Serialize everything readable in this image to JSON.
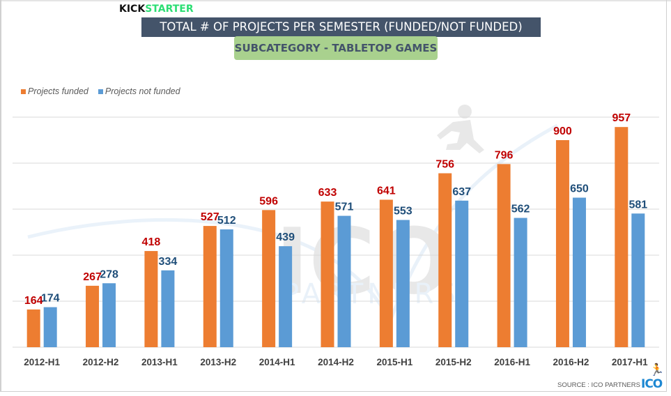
{
  "header": {
    "brand_part1": "KICK",
    "brand_part2": "STARTER",
    "title": "TOTAL # OF PROJECTS PER SEMESTER (FUNDED/NOT FUNDED)",
    "subtitle": "SUBCATEGORY - TABLETOP GAMES"
  },
  "footer": {
    "source": "SOURCE : ICO PARTNERS",
    "logo": "ICO",
    "runner_icon": "running-man-icon"
  },
  "watermark": {
    "text_big": "ICO",
    "text_small": "PARTNERS"
  },
  "colors": {
    "funded": "#ed7d31",
    "not_funded": "#5b9bd5",
    "funded_label": "#c00000",
    "not_funded_label": "#1f4e79",
    "gridline": "#d9d9d9"
  },
  "chart_data": {
    "type": "bar",
    "title": "TOTAL # OF PROJECTS PER SEMESTER (FUNDED/NOT FUNDED)",
    "subtitle": "SUBCATEGORY - TABLETOP GAMES",
    "xlabel": "",
    "ylabel": "",
    "ylim": [
      0,
      1000
    ],
    "y_gridlines": [
      0,
      200,
      400,
      600,
      800,
      1000
    ],
    "y_tick_labels_visible": false,
    "grid": true,
    "legend_position": "top-left",
    "categories": [
      "2012-H1",
      "2012-H2",
      "2013-H1",
      "2013-H2",
      "2014-H1",
      "2014-H2",
      "2015-H1",
      "2015-H2",
      "2016-H1",
      "2016-H2",
      "2017-H1"
    ],
    "series": [
      {
        "name": "Projects funded",
        "values": [
          164,
          267,
          418,
          527,
          596,
          633,
          641,
          756,
          796,
          900,
          957
        ]
      },
      {
        "name": "Projects not funded",
        "values": [
          174,
          278,
          334,
          512,
          439,
          571,
          553,
          637,
          562,
          650,
          581
        ]
      }
    ]
  }
}
